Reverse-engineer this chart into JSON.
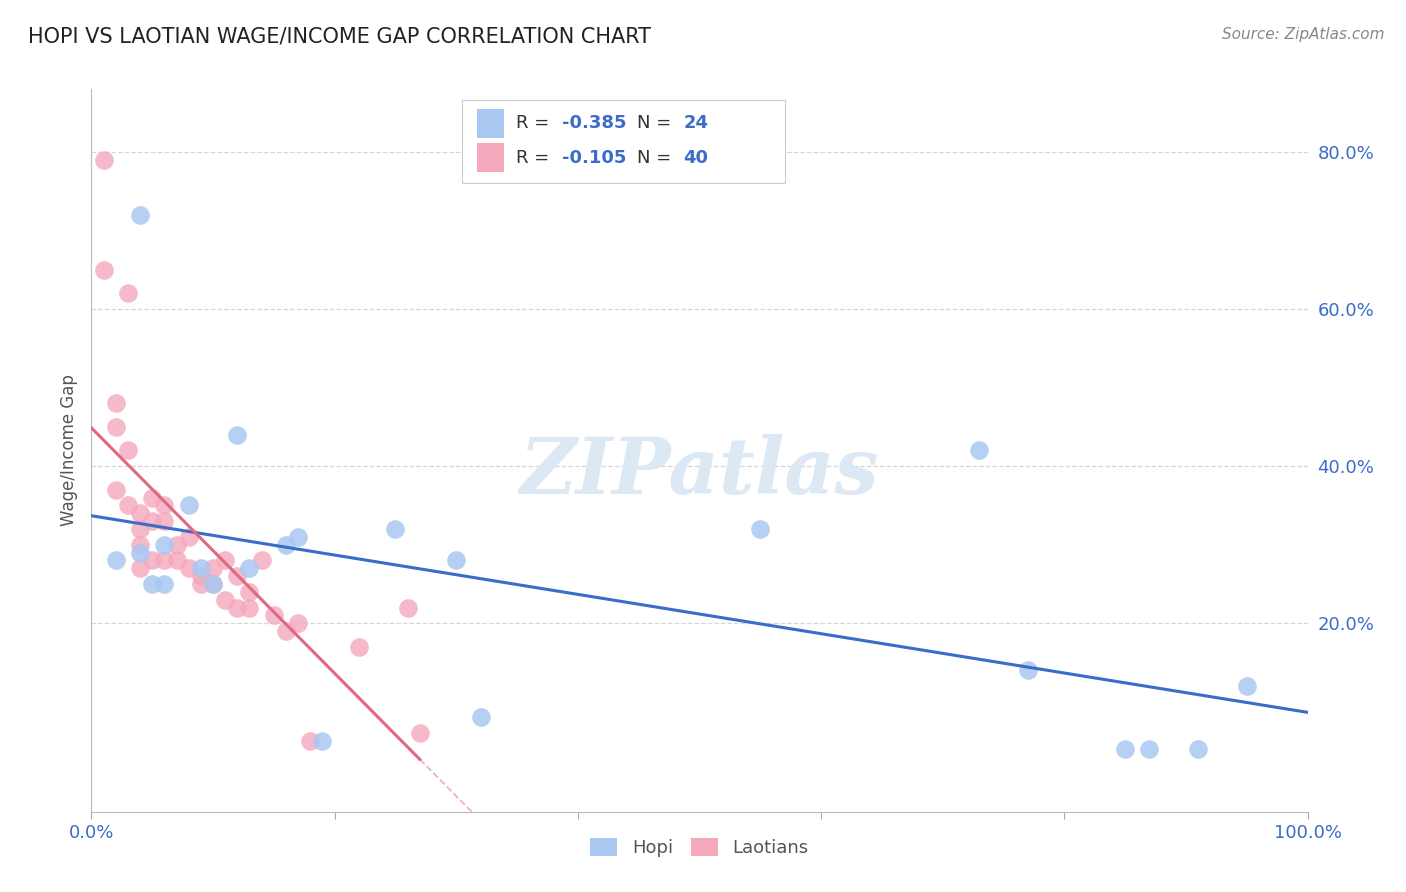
{
  "title": "HOPI VS LAOTIAN WAGE/INCOME GAP CORRELATION CHART",
  "source": "Source: ZipAtlas.com",
  "ylabel_label": "Wage/Income Gap",
  "hopi_R": -0.385,
  "hopi_N": 24,
  "laotian_R": -0.105,
  "laotian_N": 40,
  "hopi_color": "#a8c8f0",
  "laotian_color": "#f4a8bc",
  "hopi_line_color": "#3a6cc8",
  "laotian_line_color": "#e06880",
  "laotian_dashed_color": "#f0b0c0",
  "legend_text_color": "#3a6cc8",
  "legend_label_color": "#333333",
  "watermark_color": "#dce8f4",
  "grid_color": "#cccccc",
  "title_color": "#222222",
  "source_color": "#888888",
  "axis_tick_color": "#3a6cc8",
  "hopi_x": [
    0.02,
    0.04,
    0.04,
    0.05,
    0.06,
    0.06,
    0.08,
    0.09,
    0.1,
    0.12,
    0.13,
    0.16,
    0.17,
    0.19,
    0.25,
    0.3,
    0.32,
    0.55,
    0.73,
    0.77,
    0.85,
    0.87,
    0.91,
    0.95
  ],
  "hopi_y": [
    0.28,
    0.72,
    0.29,
    0.25,
    0.25,
    0.3,
    0.35,
    0.27,
    0.25,
    0.44,
    0.27,
    0.3,
    0.31,
    0.05,
    0.32,
    0.28,
    0.08,
    0.32,
    0.42,
    0.14,
    0.04,
    0.04,
    0.04,
    0.12
  ],
  "laotian_x": [
    0.01,
    0.01,
    0.02,
    0.02,
    0.02,
    0.03,
    0.03,
    0.03,
    0.04,
    0.04,
    0.04,
    0.04,
    0.05,
    0.05,
    0.05,
    0.06,
    0.06,
    0.06,
    0.07,
    0.07,
    0.08,
    0.08,
    0.09,
    0.09,
    0.1,
    0.1,
    0.11,
    0.11,
    0.12,
    0.12,
    0.13,
    0.13,
    0.14,
    0.15,
    0.16,
    0.17,
    0.18,
    0.22,
    0.26,
    0.27
  ],
  "laotian_y": [
    0.79,
    0.65,
    0.48,
    0.45,
    0.37,
    0.62,
    0.42,
    0.35,
    0.34,
    0.32,
    0.3,
    0.27,
    0.36,
    0.33,
    0.28,
    0.35,
    0.33,
    0.28,
    0.3,
    0.28,
    0.31,
    0.27,
    0.26,
    0.25,
    0.27,
    0.25,
    0.28,
    0.23,
    0.26,
    0.22,
    0.24,
    0.22,
    0.28,
    0.21,
    0.19,
    0.2,
    0.05,
    0.17,
    0.22,
    0.06
  ],
  "x_min": 0.0,
  "x_max": 1.0,
  "y_min": -0.04,
  "y_max": 0.88,
  "y_ticks": [
    0.2,
    0.4,
    0.6,
    0.8
  ],
  "x_ticks": [
    0.0,
    0.2,
    0.4,
    0.6,
    0.8,
    1.0
  ]
}
